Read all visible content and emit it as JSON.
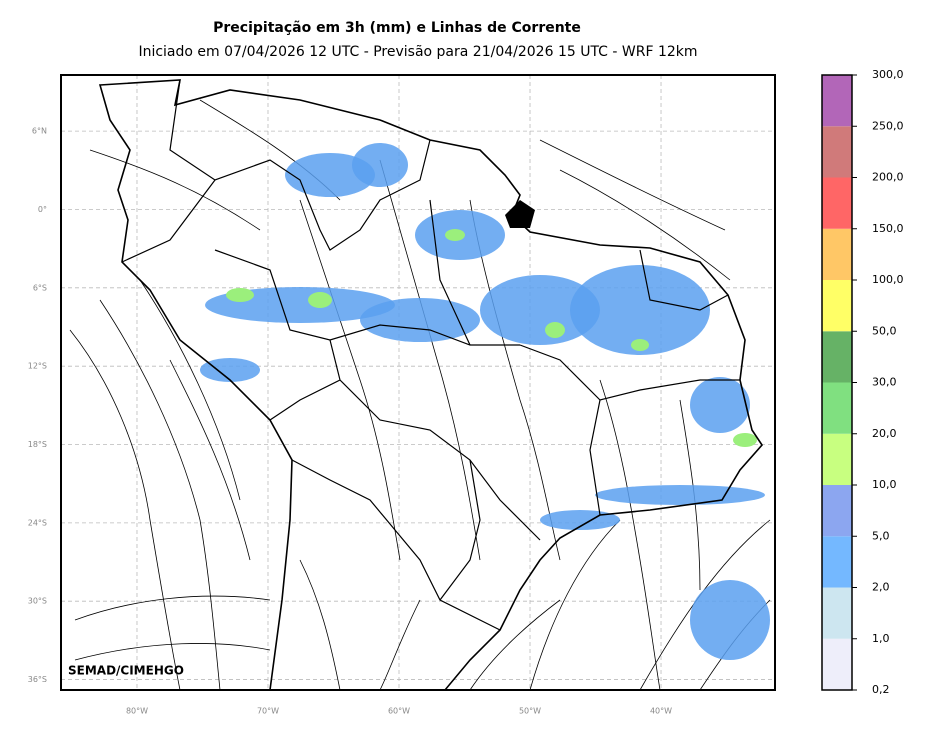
{
  "header": {
    "title": "Precipitação em 3h (mm) e Linhas de Corrente",
    "subtitle": "Iniciado em 07/04/2026 12 UTC - Previsão para 21/04/2026 15 UTC - WRF 12km"
  },
  "map": {
    "extent": {
      "lon": [
        -85.8,
        -31.3
      ],
      "lat": [
        -36.8,
        10.3
      ]
    },
    "lat_ticks": [
      {
        "value": 6,
        "label": "6°N"
      },
      {
        "value": 0,
        "label": "0°"
      },
      {
        "value": -6,
        "label": "6°S"
      },
      {
        "value": -12,
        "label": "12°S"
      },
      {
        "value": -18,
        "label": "18°S"
      },
      {
        "value": -24,
        "label": "24°S"
      },
      {
        "value": -30,
        "label": "30°S"
      },
      {
        "value": -36,
        "label": "36°S"
      }
    ],
    "lon_ticks": [
      {
        "value": -80,
        "label": "80°W"
      },
      {
        "value": -70,
        "label": "70°W"
      },
      {
        "value": -60,
        "label": "60°W"
      },
      {
        "value": -50,
        "label": "50°W"
      },
      {
        "value": -40,
        "label": "40°W"
      }
    ],
    "grid": true,
    "credit": "SEMAD/CIMEHGO"
  },
  "colorbar": {
    "labels": [
      "0,2",
      "1,0",
      "2,0",
      "5,0",
      "10,0",
      "20,0",
      "30,0",
      "50,0",
      "100,0",
      "150,0",
      "200,0",
      "250,0",
      "300,0"
    ],
    "colors": [
      "#eeeefa",
      "#cde6f0",
      "#74b8ff",
      "#8ca6f0",
      "#c8ff80",
      "#80e080",
      "#66b266",
      "#ffff66",
      "#ffc766",
      "#ff6666",
      "#d07a7a",
      "#b266b8"
    ]
  }
}
